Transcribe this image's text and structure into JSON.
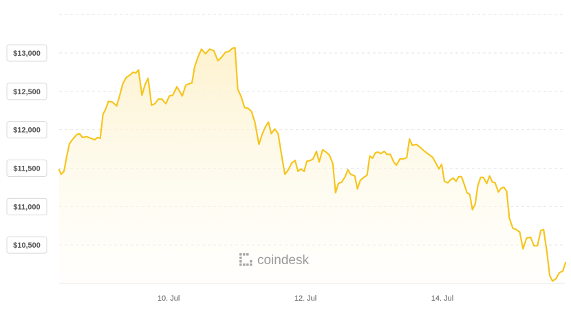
{
  "chart_data": {
    "type": "area",
    "title": "",
    "xlabel": "",
    "ylabel": "",
    "currency_prefix": "$",
    "watermark": "coindesk",
    "line_color": "#f5c51e",
    "fill_color_top": "#fdf0c6",
    "fill_color_bottom": "#fffdf6",
    "grid": true,
    "ylim": [
      10000,
      13600
    ],
    "y_ticks": [
      {
        "value": 10500,
        "label": "$10,500"
      },
      {
        "value": 11000,
        "label": "$11,000"
      },
      {
        "value": 11500,
        "label": "$11,500"
      },
      {
        "value": 12000,
        "label": "$12,000"
      },
      {
        "value": 12500,
        "label": "$12,500"
      },
      {
        "value": 13000,
        "label": "$13,000"
      }
    ],
    "xlim": [
      0,
      7.4
    ],
    "x_ticks": [
      {
        "value": 1.6,
        "label": "10. Jul"
      },
      {
        "value": 3.6,
        "label": "12. Jul"
      },
      {
        "value": 5.6,
        "label": "14. Jul"
      }
    ],
    "series": [
      {
        "values": [
          [
            0.0,
            11480
          ],
          [
            0.03,
            11420
          ],
          [
            0.07,
            11460
          ],
          [
            0.11,
            11650
          ],
          [
            0.15,
            11820
          ],
          [
            0.2,
            11880
          ],
          [
            0.26,
            11940
          ],
          [
            0.3,
            11950
          ],
          [
            0.34,
            11900
          ],
          [
            0.4,
            11910
          ],
          [
            0.46,
            11890
          ],
          [
            0.52,
            11870
          ],
          [
            0.56,
            11900
          ],
          [
            0.6,
            11890
          ],
          [
            0.64,
            12200
          ],
          [
            0.68,
            12270
          ],
          [
            0.72,
            12370
          ],
          [
            0.78,
            12360
          ],
          [
            0.84,
            12310
          ],
          [
            0.88,
            12430
          ],
          [
            0.93,
            12600
          ],
          [
            0.98,
            12680
          ],
          [
            1.03,
            12710
          ],
          [
            1.08,
            12750
          ],
          [
            1.12,
            12740
          ],
          [
            1.16,
            12780
          ],
          [
            1.21,
            12450
          ],
          [
            1.26,
            12600
          ],
          [
            1.3,
            12670
          ],
          [
            1.35,
            12320
          ],
          [
            1.4,
            12340
          ],
          [
            1.45,
            12400
          ],
          [
            1.5,
            12400
          ],
          [
            1.56,
            12340
          ],
          [
            1.61,
            12440
          ],
          [
            1.66,
            12450
          ],
          [
            1.72,
            12560
          ],
          [
            1.76,
            12500
          ],
          [
            1.8,
            12440
          ],
          [
            1.85,
            12580
          ],
          [
            1.9,
            12600
          ],
          [
            1.94,
            12610
          ],
          [
            1.98,
            12820
          ],
          [
            2.03,
            12950
          ],
          [
            2.08,
            13050
          ],
          [
            2.14,
            12990
          ],
          [
            2.2,
            13050
          ],
          [
            2.26,
            13030
          ],
          [
            2.32,
            12900
          ],
          [
            2.37,
            12940
          ],
          [
            2.43,
            13010
          ],
          [
            2.48,
            13020
          ],
          [
            2.53,
            13060
          ],
          [
            2.57,
            13070
          ],
          [
            2.61,
            12530
          ],
          [
            2.66,
            12430
          ],
          [
            2.71,
            12290
          ],
          [
            2.76,
            12280
          ],
          [
            2.81,
            12240
          ],
          [
            2.86,
            12100
          ],
          [
            2.92,
            11810
          ],
          [
            2.97,
            11950
          ],
          [
            3.02,
            12050
          ],
          [
            3.06,
            12100
          ],
          [
            3.1,
            11950
          ],
          [
            3.15,
            12010
          ],
          [
            3.2,
            11950
          ],
          [
            3.26,
            11620
          ],
          [
            3.3,
            11420
          ],
          [
            3.35,
            11480
          ],
          [
            3.4,
            11570
          ],
          [
            3.45,
            11600
          ],
          [
            3.49,
            11460
          ],
          [
            3.53,
            11490
          ],
          [
            3.58,
            11460
          ],
          [
            3.62,
            11590
          ],
          [
            3.67,
            11600
          ],
          [
            3.71,
            11620
          ],
          [
            3.76,
            11720
          ],
          [
            3.8,
            11580
          ],
          [
            3.85,
            11740
          ],
          [
            3.9,
            11710
          ],
          [
            3.95,
            11670
          ],
          [
            4.0,
            11560
          ],
          [
            4.04,
            11180
          ],
          [
            4.08,
            11300
          ],
          [
            4.13,
            11320
          ],
          [
            4.18,
            11390
          ],
          [
            4.22,
            11480
          ],
          [
            4.26,
            11420
          ],
          [
            4.32,
            11400
          ],
          [
            4.36,
            11230
          ],
          [
            4.4,
            11340
          ],
          [
            4.45,
            11380
          ],
          [
            4.5,
            11410
          ],
          [
            4.54,
            11660
          ],
          [
            4.58,
            11630
          ],
          [
            4.62,
            11700
          ],
          [
            4.66,
            11710
          ],
          [
            4.7,
            11690
          ],
          [
            4.75,
            11720
          ],
          [
            4.79,
            11680
          ],
          [
            4.84,
            11680
          ],
          [
            4.89,
            11580
          ],
          [
            4.93,
            11540
          ],
          [
            4.98,
            11620
          ],
          [
            5.03,
            11620
          ],
          [
            5.08,
            11640
          ],
          [
            5.12,
            11880
          ],
          [
            5.16,
            11800
          ],
          [
            5.22,
            11810
          ],
          [
            5.28,
            11770
          ],
          [
            5.34,
            11720
          ],
          [
            5.4,
            11680
          ],
          [
            5.46,
            11640
          ],
          [
            5.51,
            11560
          ],
          [
            5.55,
            11490
          ],
          [
            5.59,
            11550
          ],
          [
            5.63,
            11330
          ],
          [
            5.68,
            11310
          ],
          [
            5.72,
            11350
          ],
          [
            5.76,
            11370
          ],
          [
            5.8,
            11330
          ],
          [
            5.84,
            11390
          ],
          [
            5.88,
            11390
          ],
          [
            5.92,
            11290
          ],
          [
            5.96,
            11180
          ],
          [
            6.0,
            11160
          ],
          [
            6.04,
            10960
          ],
          [
            6.08,
            11030
          ],
          [
            6.12,
            11280
          ],
          [
            6.16,
            11380
          ],
          [
            6.2,
            11380
          ],
          [
            6.25,
            11300
          ],
          [
            6.29,
            11400
          ],
          [
            6.33,
            11320
          ],
          [
            6.37,
            11310
          ],
          [
            6.42,
            11190
          ],
          [
            6.46,
            11240
          ],
          [
            6.5,
            11250
          ],
          [
            6.54,
            11200
          ],
          [
            6.58,
            10850
          ],
          [
            6.63,
            10720
          ],
          [
            6.68,
            10700
          ],
          [
            6.73,
            10670
          ],
          [
            6.78,
            10450
          ],
          [
            6.83,
            10590
          ],
          [
            6.89,
            10600
          ],
          [
            6.94,
            10490
          ],
          [
            6.99,
            10490
          ],
          [
            7.04,
            10690
          ],
          [
            7.08,
            10700
          ],
          [
            7.13,
            10400
          ],
          [
            7.17,
            10100
          ],
          [
            7.21,
            10030
          ],
          [
            7.26,
            10060
          ],
          [
            7.31,
            10140
          ],
          [
            7.36,
            10160
          ],
          [
            7.4,
            10270
          ]
        ]
      }
    ]
  }
}
